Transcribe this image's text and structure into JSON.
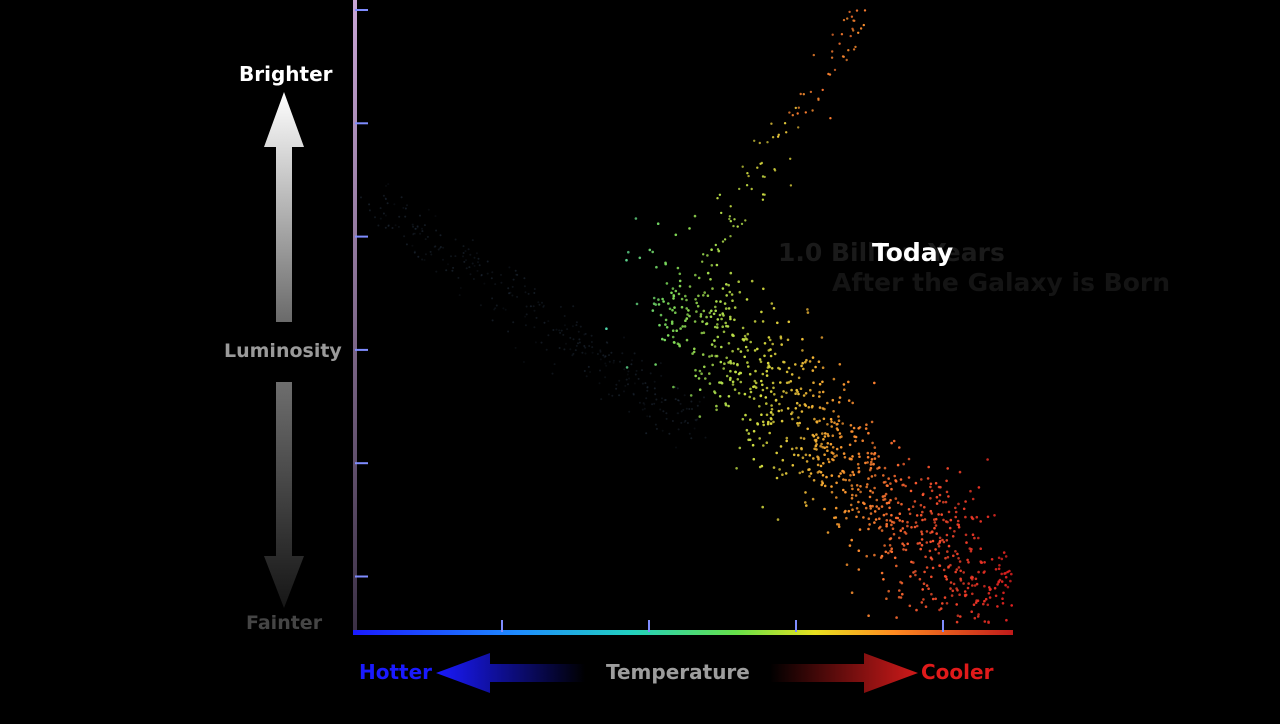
{
  "labels": {
    "brighter": "Brighter",
    "luminosity": "Luminosity",
    "fainter": "Fainter",
    "temperature": "Temperature",
    "hotter": "Hotter",
    "cooler": "Cooler",
    "epoch": "Today",
    "faded_epoch_line1": "1.0 Billion Years",
    "faded_epoch_line2": "After the Galaxy is Born"
  },
  "colors": {
    "background": "#000000",
    "hot": "#1a1aff",
    "cool": "#e01a1a",
    "luminosity_axis": "#c9a6d6",
    "tick": "#7f8cff",
    "main_sequence_faint": "#2a3a4a"
  },
  "diagram": {
    "luminosity_ticks": 6,
    "temperature_ticks": 4,
    "temperature_axis_gradient": [
      "#1a1aff",
      "#1e8cff",
      "#22d0c0",
      "#66e04a",
      "#e8e020",
      "#ff8a20",
      "#c01a1a"
    ],
    "star_population": "main sequence + red giant branch"
  }
}
